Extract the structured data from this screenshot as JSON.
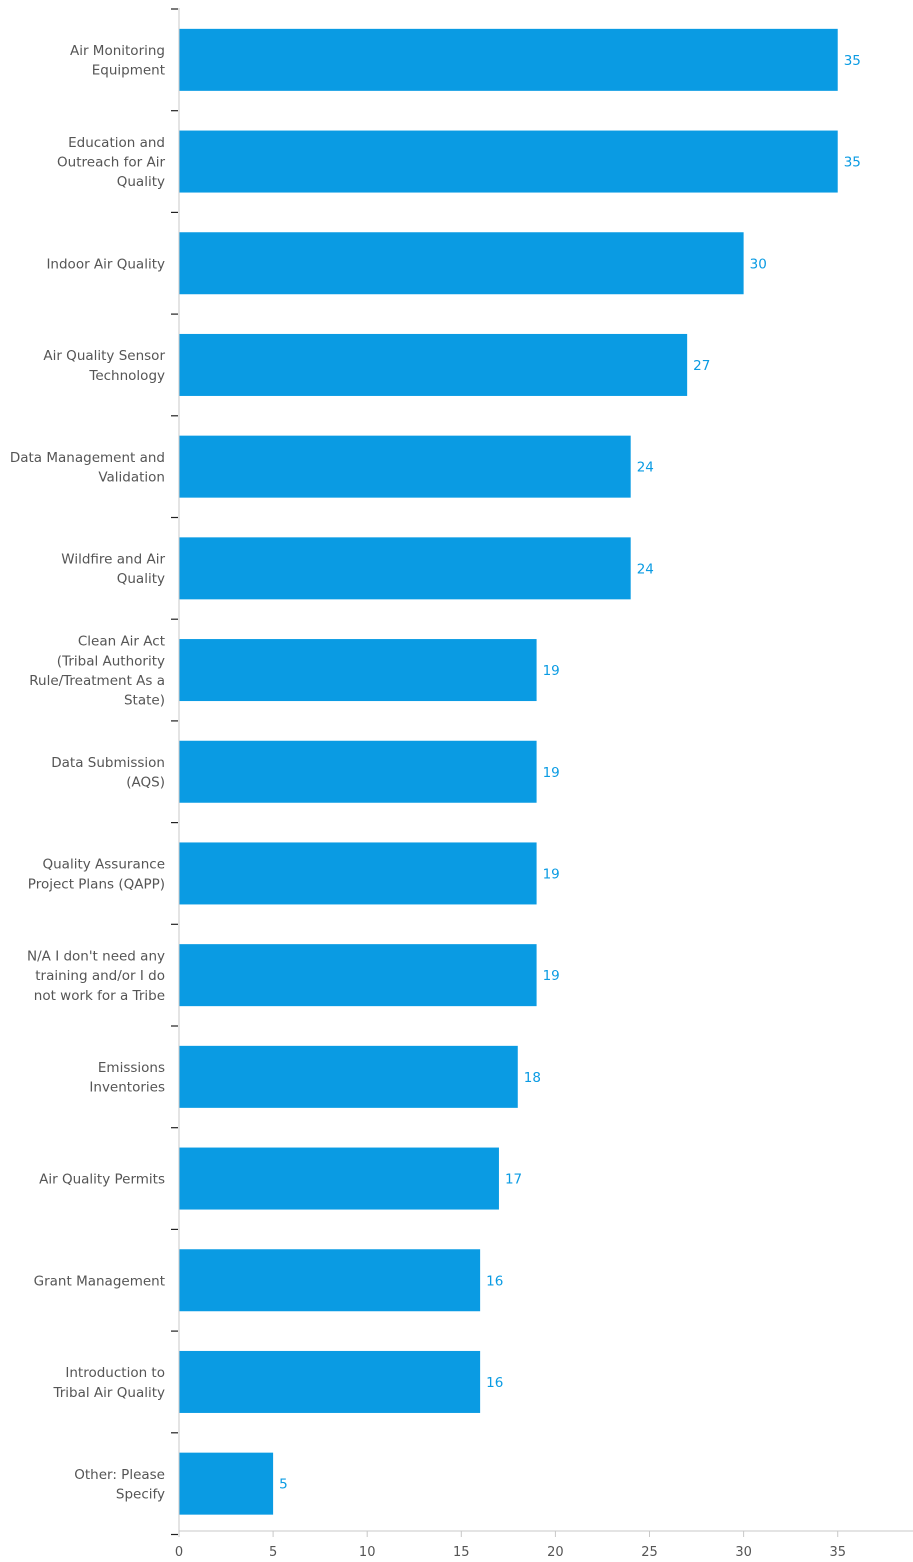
{
  "chart_data": {
    "type": "bar",
    "orientation": "horizontal",
    "categories": [
      [
        "Air Monitoring",
        "Equipment"
      ],
      [
        "Education and",
        "Outreach for Air",
        "Quality"
      ],
      [
        "Indoor Air Quality"
      ],
      [
        "Air Quality Sensor",
        "Technology"
      ],
      [
        "Data Management and",
        "Validation"
      ],
      [
        "Wildfire and Air",
        "Quality"
      ],
      [
        "Clean Air Act",
        "(Tribal Authority",
        "Rule/Treatment As a",
        "State)"
      ],
      [
        "Data Submission",
        "(AQS)"
      ],
      [
        "Quality Assurance",
        "Project Plans (QAPP)"
      ],
      [
        "N/A I don't need any",
        "training and/or I do",
        "not work for a Tribe"
      ],
      [
        "Emissions",
        "Inventories"
      ],
      [
        "Air Quality Permits"
      ],
      [
        "Grant Management"
      ],
      [
        "Introduction to",
        "Tribal Air Quality"
      ],
      [
        "Other: Please",
        "Specify"
      ]
    ],
    "values": [
      35,
      35,
      30,
      27,
      24,
      24,
      19,
      19,
      19,
      19,
      18,
      17,
      16,
      16,
      5
    ],
    "value_labels": [
      "35",
      "35",
      "30",
      "27",
      "24",
      "24",
      "19",
      "19",
      "19",
      "19",
      "18",
      "17",
      "16",
      "16",
      "5"
    ],
    "xticks": [
      "0",
      "5",
      "10",
      "15",
      "20",
      "25",
      "30",
      "35"
    ],
    "xlim": [
      0,
      39
    ],
    "title": "",
    "xlabel": "",
    "ylabel": "",
    "grid": false,
    "legend": "none",
    "colors": {
      "bar": "#0A9BE3",
      "value_label": "#0A9BE3",
      "category_label": "#555555",
      "axis": "#c8c8c8",
      "category_tick": "#222222"
    }
  }
}
